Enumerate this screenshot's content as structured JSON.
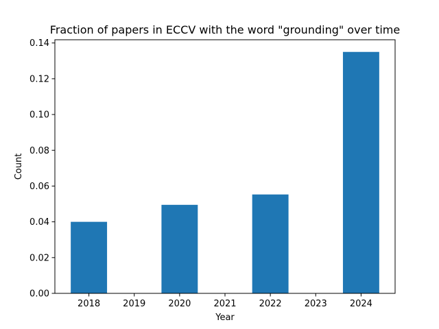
{
  "chart_data": {
    "type": "bar",
    "title": "Fraction of papers in ECCV with the word \"grounding\" over time",
    "xlabel": "Year",
    "ylabel": "Count",
    "categories": [
      "2018",
      "2019",
      "2020",
      "2021",
      "2022",
      "2023",
      "2024"
    ],
    "bars": [
      {
        "year": 2018,
        "value": 0.04
      },
      {
        "year": 2020,
        "value": 0.0495
      },
      {
        "year": 2022,
        "value": 0.0553
      },
      {
        "year": 2024,
        "value": 0.135
      }
    ],
    "xlim": [
      2017.25,
      2024.75
    ],
    "ylim": [
      0,
      0.1418
    ],
    "yticks": [
      "0.00",
      "0.02",
      "0.04",
      "0.06",
      "0.08",
      "0.10",
      "0.12",
      "0.14"
    ],
    "bar_width_years": 0.8,
    "grid": false,
    "legend": "none",
    "colors": {
      "bar": "#1f77b4",
      "axis": "#000000"
    }
  }
}
